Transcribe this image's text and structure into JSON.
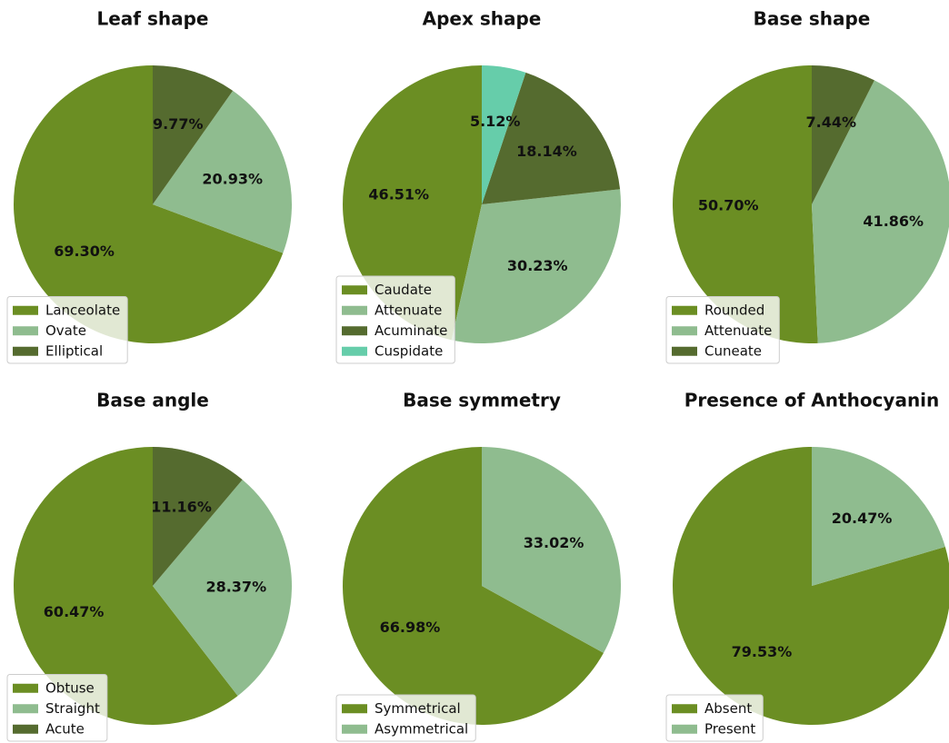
{
  "chart_data": [
    {
      "type": "pie",
      "title": "Leaf shape",
      "categories": [
        "Lanceolate",
        "Ovate",
        "Elliptical"
      ],
      "values": [
        69.3,
        20.93,
        9.77
      ],
      "value_labels": [
        "69.30%",
        "20.93%",
        "9.77%"
      ],
      "colors": [
        "#6b8e23",
        "#8fbc8f",
        "#556b2f"
      ]
    },
    {
      "type": "pie",
      "title": "Apex shape",
      "categories": [
        "Caudate",
        "Attenuate",
        "Acuminate",
        "Cuspidate"
      ],
      "values": [
        46.51,
        30.23,
        18.14,
        5.12
      ],
      "value_labels": [
        "46.51%",
        "30.23%",
        "18.14%",
        "5.12%"
      ],
      "colors": [
        "#6b8e23",
        "#8fbc8f",
        "#556b2f",
        "#66cdaa"
      ]
    },
    {
      "type": "pie",
      "title": "Base shape",
      "categories": [
        "Rounded",
        "Attenuate",
        "Cuneate"
      ],
      "values": [
        50.7,
        41.86,
        7.44
      ],
      "value_labels": [
        "50.70%",
        "41.86%",
        "7.44%"
      ],
      "colors": [
        "#6b8e23",
        "#8fbc8f",
        "#556b2f"
      ]
    },
    {
      "type": "pie",
      "title": "Base angle",
      "categories": [
        "Obtuse",
        "Straight",
        "Acute"
      ],
      "values": [
        60.47,
        28.37,
        11.16
      ],
      "value_labels": [
        "60.47%",
        "28.37%",
        "11.16%"
      ],
      "colors": [
        "#6b8e23",
        "#8fbc8f",
        "#556b2f"
      ]
    },
    {
      "type": "pie",
      "title": "Base symmetry",
      "categories": [
        "Symmetrical",
        "Asymmetrical"
      ],
      "values": [
        66.98,
        33.02
      ],
      "value_labels": [
        "66.98%",
        "33.02%"
      ],
      "colors": [
        "#6b8e23",
        "#8fbc8f"
      ]
    },
    {
      "type": "pie",
      "title": "Presence of Anthocyanin",
      "categories": [
        "Absent",
        "Present"
      ],
      "values": [
        79.53,
        20.47
      ],
      "value_labels": [
        "79.53%",
        "20.47%"
      ],
      "colors": [
        "#6b8e23",
        "#8fbc8f"
      ]
    }
  ]
}
